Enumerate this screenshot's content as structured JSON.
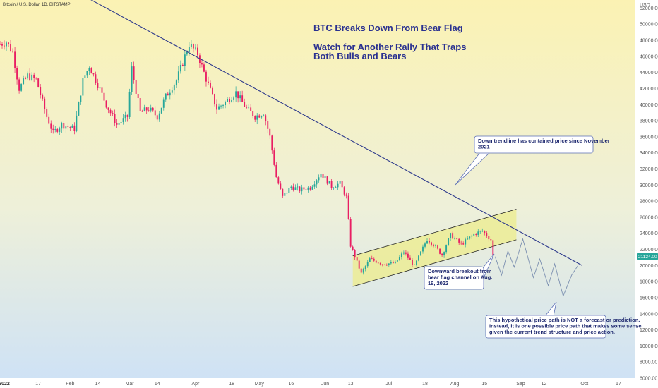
{
  "chart_data": {
    "type": "candlestick",
    "header": "Bitcoin / U.S. Dollar, 1D, BITSTAMP",
    "currency_label": "USD",
    "title_lines": [
      "BTC Breaks Down From Bear Flag"
    ],
    "subtitle_lines": [
      "Watch for Another Rally That Traps",
      "Both Bulls and Bears"
    ],
    "y_ticks": [
      52000,
      50000,
      48000,
      46000,
      44000,
      42000,
      40000,
      38000,
      36000,
      34000,
      32000,
      30000,
      28000,
      26000,
      24000,
      22000,
      20000,
      18000,
      16000,
      14000,
      12000,
      10000,
      8000,
      6000
    ],
    "y_tick_labels": [
      "52000.00",
      "50000.00",
      "48000.00",
      "46000.00",
      "44000.00",
      "42000.00",
      "40000.00",
      "38000.00",
      "36000.00",
      "34000.00",
      "32000.00",
      "30000.00",
      "28000.00",
      "26000.00",
      "24000.00",
      "22000.00",
      "20000.00",
      "18000.00",
      "16000.00",
      "14000.00",
      "12000.00",
      "10000.00",
      "8000.00",
      "6000.00"
    ],
    "ylim": [
      6000,
      53000
    ],
    "last_price": 21124.0,
    "last_price_label": "21124.00",
    "x_ticks": [
      {
        "label": "2022",
        "date": "2022-01-01"
      },
      {
        "label": "17",
        "date": "2022-01-17"
      },
      {
        "label": "Feb",
        "date": "2022-02-01"
      },
      {
        "label": "14",
        "date": "2022-02-14"
      },
      {
        "label": "Mar",
        "date": "2022-03-01"
      },
      {
        "label": "14",
        "date": "2022-03-14"
      },
      {
        "label": "Apr",
        "date": "2022-04-01"
      },
      {
        "label": "18",
        "date": "2022-04-18"
      },
      {
        "label": "May",
        "date": "2022-05-01"
      },
      {
        "label": "16",
        "date": "2022-05-16"
      },
      {
        "label": "Jun",
        "date": "2022-06-01"
      },
      {
        "label": "13",
        "date": "2022-06-13"
      },
      {
        "label": "Jul",
        "date": "2022-07-01"
      },
      {
        "label": "18",
        "date": "2022-07-18"
      },
      {
        "label": "Aug",
        "date": "2022-08-01"
      },
      {
        "label": "15",
        "date": "2022-08-15"
      },
      {
        "label": "Sep",
        "date": "2022-09-01"
      },
      {
        "label": "12",
        "date": "2022-09-12"
      },
      {
        "label": "Oct",
        "date": "2022-10-01"
      },
      {
        "label": "17",
        "date": "2022-10-17"
      }
    ],
    "xlim": [
      "2021-12-30",
      "2022-10-25"
    ],
    "colors": {
      "up": "#26a69a",
      "down": "#e91e63",
      "trendline": "#2e3a8c",
      "channel_fill": "#ecec95",
      "bg_top": "#fbf2b3",
      "bg_bottom": "#cfe2f5",
      "callout_bg": "#ffffff",
      "callout_border": "#5b6fb5",
      "price_badge": "#26a69a"
    },
    "price_anchors": [
      {
        "date": "2021-12-30",
        "price": 47500
      },
      {
        "date": "2022-01-02",
        "price": 47800
      },
      {
        "date": "2022-01-05",
        "price": 46500
      },
      {
        "date": "2022-01-08",
        "price": 42000
      },
      {
        "date": "2022-01-12",
        "price": 43600
      },
      {
        "date": "2022-01-16",
        "price": 43100
      },
      {
        "date": "2022-01-21",
        "price": 38500
      },
      {
        "date": "2022-01-24",
        "price": 36500
      },
      {
        "date": "2022-01-28",
        "price": 37500
      },
      {
        "date": "2022-02-03",
        "price": 37000
      },
      {
        "date": "2022-02-07",
        "price": 43000
      },
      {
        "date": "2022-02-10",
        "price": 44800
      },
      {
        "date": "2022-02-14",
        "price": 42500
      },
      {
        "date": "2022-02-18",
        "price": 40000
      },
      {
        "date": "2022-02-23",
        "price": 37500
      },
      {
        "date": "2022-02-28",
        "price": 38500
      },
      {
        "date": "2022-03-02",
        "price": 44500
      },
      {
        "date": "2022-03-06",
        "price": 39000
      },
      {
        "date": "2022-03-10",
        "price": 39500
      },
      {
        "date": "2022-03-14",
        "price": 38500
      },
      {
        "date": "2022-03-18",
        "price": 41000
      },
      {
        "date": "2022-03-23",
        "price": 43000
      },
      {
        "date": "2022-03-29",
        "price": 47500
      },
      {
        "date": "2022-04-02",
        "price": 46300
      },
      {
        "date": "2022-04-06",
        "price": 43200
      },
      {
        "date": "2022-04-11",
        "price": 39500
      },
      {
        "date": "2022-04-16",
        "price": 40500
      },
      {
        "date": "2022-04-20",
        "price": 41500
      },
      {
        "date": "2022-04-25",
        "price": 39500
      },
      {
        "date": "2022-04-29",
        "price": 38500
      },
      {
        "date": "2022-05-03",
        "price": 39000
      },
      {
        "date": "2022-05-06",
        "price": 36000
      },
      {
        "date": "2022-05-09",
        "price": 31000
      },
      {
        "date": "2022-05-12",
        "price": 28500
      },
      {
        "date": "2022-05-16",
        "price": 29800
      },
      {
        "date": "2022-05-20",
        "price": 29400
      },
      {
        "date": "2022-05-25",
        "price": 29700
      },
      {
        "date": "2022-05-30",
        "price": 31500
      },
      {
        "date": "2022-06-04",
        "price": 29800
      },
      {
        "date": "2022-06-08",
        "price": 30200
      },
      {
        "date": "2022-06-11",
        "price": 28500
      },
      {
        "date": "2022-06-13",
        "price": 22500
      },
      {
        "date": "2022-06-18",
        "price": 19000
      },
      {
        "date": "2022-06-22",
        "price": 20800
      },
      {
        "date": "2022-06-28",
        "price": 20200
      },
      {
        "date": "2022-07-04",
        "price": 20300
      },
      {
        "date": "2022-07-08",
        "price": 21700
      },
      {
        "date": "2022-07-13",
        "price": 19900
      },
      {
        "date": "2022-07-19",
        "price": 23300
      },
      {
        "date": "2022-07-22",
        "price": 22600
      },
      {
        "date": "2022-07-26",
        "price": 21300
      },
      {
        "date": "2022-07-30",
        "price": 23800
      },
      {
        "date": "2022-08-04",
        "price": 22600
      },
      {
        "date": "2022-08-10",
        "price": 23900
      },
      {
        "date": "2022-08-14",
        "price": 24300
      },
      {
        "date": "2022-08-18",
        "price": 23200
      },
      {
        "date": "2022-08-19",
        "price": 21200
      }
    ],
    "trendline": [
      {
        "date": "2022-01-14",
        "price": 57000
      },
      {
        "date": "2022-09-30",
        "price": 20000
      }
    ],
    "channel": {
      "upper": [
        {
          "date": "2022-06-14",
          "price": 21200
        },
        {
          "date": "2022-08-30",
          "price": 27000
        }
      ],
      "lower": [
        {
          "date": "2022-06-14",
          "price": 17400
        },
        {
          "date": "2022-08-30",
          "price": 23200
        }
      ]
    },
    "hypothetical_path": [
      {
        "date": "2022-08-20",
        "price": 21100
      },
      {
        "date": "2022-08-23",
        "price": 18800
      },
      {
        "date": "2022-08-26",
        "price": 21800
      },
      {
        "date": "2022-08-29",
        "price": 19800
      },
      {
        "date": "2022-09-02",
        "price": 23300
      },
      {
        "date": "2022-09-07",
        "price": 18500
      },
      {
        "date": "2022-09-10",
        "price": 20800
      },
      {
        "date": "2022-09-14",
        "price": 17500
      },
      {
        "date": "2022-09-17",
        "price": 20200
      },
      {
        "date": "2022-09-21",
        "price": 16200
      },
      {
        "date": "2022-09-25",
        "price": 18800
      },
      {
        "date": "2022-09-28",
        "price": 20000
      }
    ],
    "annotations": [
      {
        "text_lines": [
          "Down trendline has contained price since November",
          "2021"
        ]
      },
      {
        "text_lines": [
          "Downward breakout from",
          "bear flag channel on Aug.",
          "19, 2022"
        ]
      },
      {
        "text_lines": [
          "This hypothetical price path is NOT a forecast or prediction.",
          "Instead, it is one possible price path that makes some sense",
          "given the current trend structure and price action."
        ]
      }
    ]
  }
}
